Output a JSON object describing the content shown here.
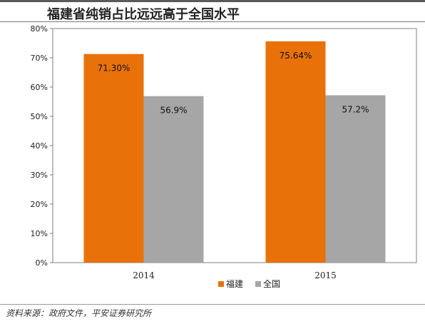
{
  "chart_data": {
    "type": "bar",
    "title": "福建省纯销占比远远高于全国水平",
    "categories": [
      "2014",
      "2015"
    ],
    "series": [
      {
        "name": "福建",
        "values": [
          71.3,
          75.64
        ],
        "labels": [
          "71.30%",
          "75.64%"
        ],
        "color": "#e8710a"
      },
      {
        "name": "全国",
        "values": [
          56.9,
          57.2
        ],
        "labels": [
          "56.9%",
          "57.2%"
        ],
        "color": "#a6a6a6"
      }
    ],
    "ylim": [
      0,
      80
    ],
    "yticks": [
      0,
      10,
      20,
      30,
      40,
      50,
      60,
      70,
      80
    ],
    "ytick_labels": [
      "0%",
      "10%",
      "20%",
      "30%",
      "40%",
      "50%",
      "60%",
      "70%",
      "80%"
    ],
    "grid": false,
    "legend": "bottom-center",
    "xlabel": "",
    "ylabel": ""
  },
  "source": "资料来源：政府文件，平安证券研究所"
}
